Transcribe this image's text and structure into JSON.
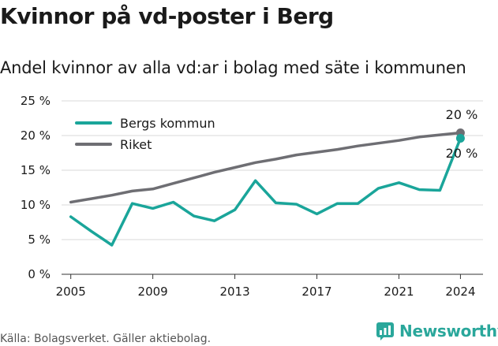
{
  "header": {
    "title": "Kvinnor på vd-poster i Berg",
    "subtitle": "Andel kvinnor av alla vd:ar i bolag med säte i kommunen"
  },
  "footer": {
    "source": "Källa: Bolagsverket. Gäller aktiebolag.",
    "brand": "Newsworthy"
  },
  "colors": {
    "berg": "#1aa59a",
    "riket": "#6e6e73",
    "grid": "#d9d9d9",
    "brand": "#2aa79b"
  },
  "chart_data": {
    "type": "line",
    "title": "Kvinnor på vd-poster i Berg",
    "subtitle": "Andel kvinnor av alla vd:ar i bolag med säte i kommunen",
    "xlabel": "",
    "ylabel": "",
    "xlim": [
      2005,
      2024
    ],
    "ylim": [
      0,
      25
    ],
    "x_ticks": [
      2005,
      2009,
      2013,
      2017,
      2021,
      2024
    ],
    "y_ticks": [
      0,
      5,
      10,
      15,
      20,
      25
    ],
    "y_tick_labels": [
      "0 %",
      "5 %",
      "10 %",
      "15 %",
      "20 %",
      "25 %"
    ],
    "x_tick_labels": [
      "2005",
      "2009",
      "2013",
      "2017",
      "2021",
      "2024"
    ],
    "legend": [
      "Bergs kommun",
      "Riket"
    ],
    "legend_position": "top-left",
    "end_labels": [
      "20 %",
      "20 %"
    ],
    "series": [
      {
        "name": "Riket",
        "color": "#6e6e73",
        "x": [
          2005,
          2006,
          2007,
          2008,
          2009,
          2010,
          2011,
          2012,
          2013,
          2014,
          2015,
          2016,
          2017,
          2018,
          2019,
          2020,
          2021,
          2022,
          2023,
          2024
        ],
        "values": [
          10.4,
          10.9,
          11.4,
          12.0,
          12.3,
          13.1,
          13.9,
          14.7,
          15.4,
          16.1,
          16.6,
          17.2,
          17.6,
          18.0,
          18.5,
          18.9,
          19.3,
          19.8,
          20.1,
          20.4
        ]
      },
      {
        "name": "Bergs kommun",
        "color": "#1aa59a",
        "x": [
          2005,
          2006,
          2007,
          2008,
          2009,
          2010,
          2011,
          2012,
          2013,
          2014,
          2015,
          2016,
          2017,
          2018,
          2019,
          2020,
          2021,
          2022,
          2023,
          2024
        ],
        "values": [
          8.3,
          6.2,
          4.2,
          10.2,
          9.5,
          10.4,
          8.4,
          7.7,
          9.3,
          13.5,
          10.3,
          10.1,
          8.7,
          10.2,
          10.2,
          12.4,
          13.2,
          12.2,
          12.1,
          19.6
        ]
      }
    ]
  }
}
